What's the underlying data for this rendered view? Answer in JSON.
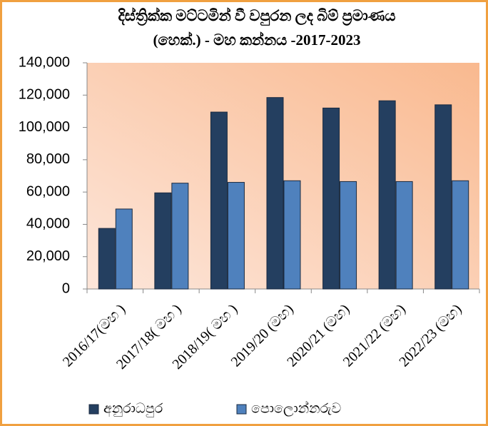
{
  "chart_data": {
    "type": "bar",
    "title": [
      "දිස්ත්‍රික්ක මට්ටමින් වී වපුරන ලද බිම් ප්‍රමාණය",
      "(හෙක්.) - මහ කන්නය -2017-2023"
    ],
    "categories": [
      "2016/17(මහ )",
      "2017/18( මහ )",
      "2018/19( මහ )",
      "2019/20 (මහ)",
      "2020/21 (මහ)",
      "2021/22 (මහ)",
      "2022/23 (මහ)"
    ],
    "series": [
      {
        "name": "අනුරාධපුර",
        "color": "#243f60",
        "values": [
          37500,
          59500,
          109500,
          118500,
          112000,
          116500,
          114000
        ]
      },
      {
        "name": "පොලොන්නරුව",
        "color": "#4f81bd",
        "values": [
          49500,
          65500,
          66000,
          67000,
          66500,
          66500,
          67000
        ]
      }
    ],
    "ylim": [
      0,
      140000
    ],
    "yticks": [
      0,
      {
        "value": 20000,
        "label": "20,000"
      },
      {
        "value": 40000,
        "label": "40,000"
      },
      {
        "value": 60000,
        "label": "60,000"
      },
      {
        "value": 80000,
        "label": "80,000"
      },
      {
        "value": 100000,
        "label": "100,000"
      },
      {
        "value": 120000,
        "label": "120,000"
      },
      {
        "value": 140000,
        "label": "140,000"
      }
    ],
    "grid": false,
    "legend": "bottom"
  }
}
